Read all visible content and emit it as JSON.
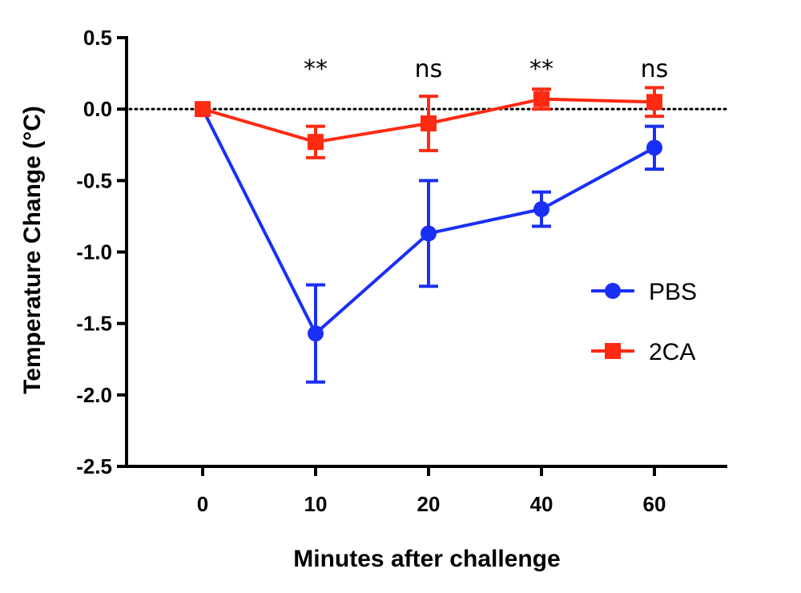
{
  "chart_data": {
    "type": "line",
    "title": "",
    "xlabel": "Minutes after challenge",
    "ylabel": "Temperature Change (°C)",
    "categories": [
      "0",
      "10",
      "20",
      "40",
      "60"
    ],
    "ylim": [
      -2.5,
      0.5
    ],
    "yticks": [
      0.5,
      0.0,
      -0.5,
      -1.0,
      -1.5,
      -2.0,
      -2.5
    ],
    "ytick_labels": [
      "0.5",
      "0.0",
      "-0.5",
      "-1.0",
      "-1.5",
      "-2.0",
      "-2.5"
    ],
    "reference_line": 0.0,
    "legend_position": "right",
    "series": [
      {
        "name": "PBS",
        "color": "#1a2ff5",
        "marker": "circle",
        "values": [
          0.0,
          -1.57,
          -0.87,
          -0.7,
          -0.27
        ],
        "error": [
          0.0,
          0.34,
          0.37,
          0.12,
          0.15
        ]
      },
      {
        "name": "2CA",
        "color": "#ff2a12",
        "marker": "square",
        "values": [
          0.0,
          -0.23,
          -0.1,
          0.07,
          0.05
        ],
        "error": [
          0.0,
          0.11,
          0.19,
          0.07,
          0.1
        ]
      }
    ],
    "annotations": [
      {
        "category": "10",
        "text": "**"
      },
      {
        "category": "20",
        "text": "ns"
      },
      {
        "category": "40",
        "text": "**"
      },
      {
        "category": "60",
        "text": "ns"
      }
    ]
  }
}
